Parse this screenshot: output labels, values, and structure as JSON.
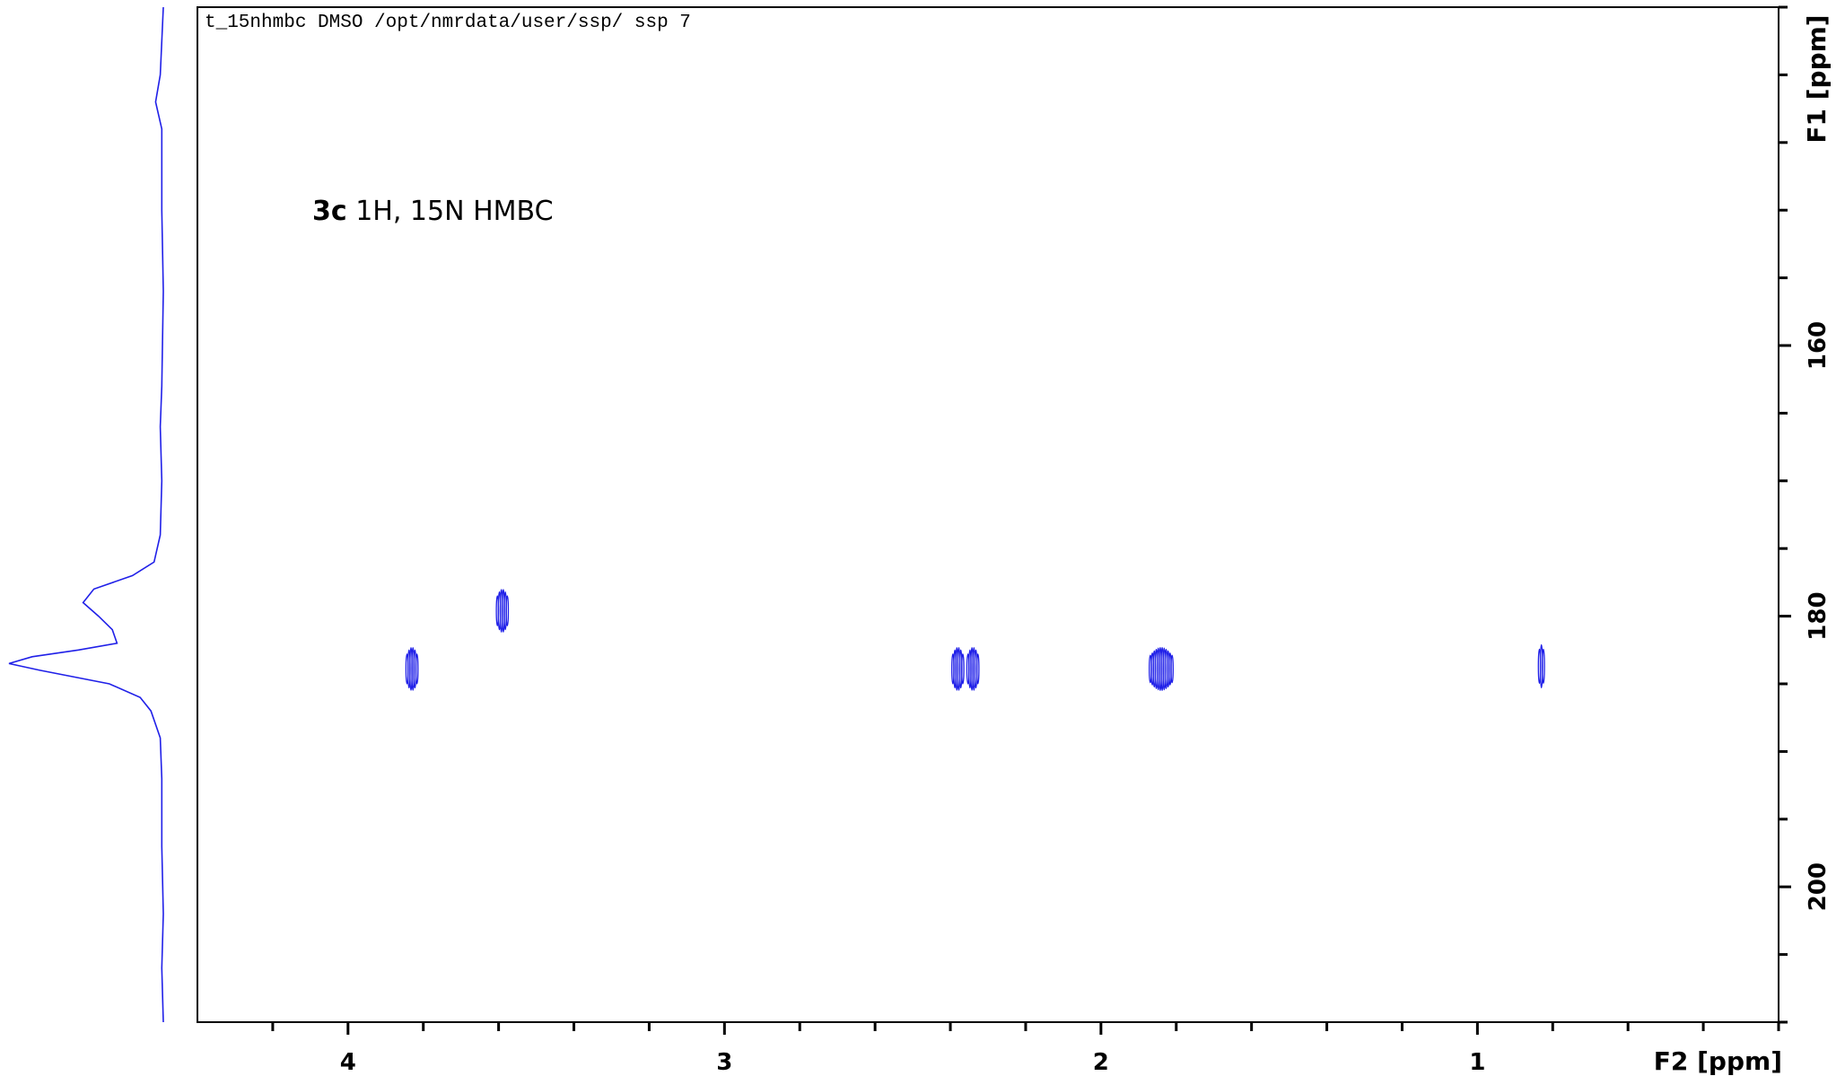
{
  "header": {
    "text": "t_15nhmbc DMSO /opt/nmrdata/user/ssp/ ssp 7"
  },
  "annotation": {
    "compound": "3c",
    "description": "1H, 15N HMBC"
  },
  "colors": {
    "trace": "#2020e8",
    "axis": "#000000"
  },
  "chart_data": {
    "type": "scatter",
    "xlabel": "F2 [ppm]",
    "ylabel": "F1 [ppm]",
    "xlim": [
      4.4,
      0.2
    ],
    "ylim": [
      135,
      210
    ],
    "x_reversed": true,
    "y_reversed": true,
    "x_ticks": [
      4,
      3,
      2,
      1
    ],
    "x_tick_labels": [
      "4",
      "3",
      "2",
      "1"
    ],
    "y_ticks": [
      160,
      180,
      200
    ],
    "y_tick_labels": [
      "160",
      "180",
      "200"
    ],
    "grid": false,
    "peaks": [
      {
        "x": 3.83,
        "y": 183.9,
        "comp": 2
      },
      {
        "x": 3.59,
        "y": 179.6,
        "comp": 2
      },
      {
        "x": 2.38,
        "y": 183.9,
        "comp": 2
      },
      {
        "x": 2.34,
        "y": 183.9,
        "comp": 2
      },
      {
        "x": 1.84,
        "y": 183.9,
        "comp": 4
      },
      {
        "x": 0.83,
        "y": 183.7,
        "comp": 1
      }
    ],
    "projection_f1": [
      {
        "ppm": 135.0,
        "i": 0.0
      },
      {
        "ppm": 140.0,
        "i": 0.02
      },
      {
        "ppm": 142.0,
        "i": 0.05
      },
      {
        "ppm": 144.0,
        "i": 0.01
      },
      {
        "ppm": 150.0,
        "i": 0.01
      },
      {
        "ppm": 156.0,
        "i": 0.0
      },
      {
        "ppm": 163.0,
        "i": 0.01
      },
      {
        "ppm": 166.0,
        "i": 0.02
      },
      {
        "ppm": 170.0,
        "i": 0.01
      },
      {
        "ppm": 174.0,
        "i": 0.02
      },
      {
        "ppm": 176.0,
        "i": 0.06
      },
      {
        "ppm": 177.0,
        "i": 0.2
      },
      {
        "ppm": 178.0,
        "i": 0.45
      },
      {
        "ppm": 179.0,
        "i": 0.52
      },
      {
        "ppm": 180.0,
        "i": 0.42
      },
      {
        "ppm": 181.0,
        "i": 0.33
      },
      {
        "ppm": 182.0,
        "i": 0.3
      },
      {
        "ppm": 182.5,
        "i": 0.55
      },
      {
        "ppm": 183.0,
        "i": 0.85
      },
      {
        "ppm": 183.5,
        "i": 1.0
      },
      {
        "ppm": 184.0,
        "i": 0.8
      },
      {
        "ppm": 185.0,
        "i": 0.35
      },
      {
        "ppm": 186.0,
        "i": 0.15
      },
      {
        "ppm": 187.0,
        "i": 0.08
      },
      {
        "ppm": 189.0,
        "i": 0.02
      },
      {
        "ppm": 192.0,
        "i": 0.01
      },
      {
        "ppm": 197.0,
        "i": 0.01
      },
      {
        "ppm": 202.0,
        "i": 0.0
      },
      {
        "ppm": 206.0,
        "i": 0.01
      },
      {
        "ppm": 210.0,
        "i": 0.0
      }
    ]
  }
}
